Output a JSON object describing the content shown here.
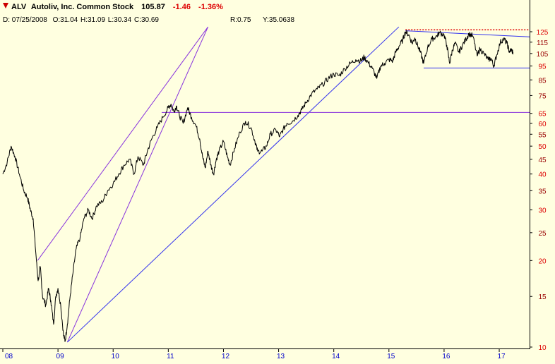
{
  "header": {
    "symbol": "ALV",
    "name": "Autoliv, Inc. Common Stock",
    "last": "105.87",
    "change": "-1.46",
    "change_pct": "-1.36%",
    "date_text": "D: 07/25/2008",
    "open_text": "O:31.04",
    "high_text": "H:31.09",
    "low_text": "L:30.34",
    "close_text": "C:30.69",
    "r_text": "R:0.75",
    "y_text": "Y:35.0638"
  },
  "colors": {
    "background": "#ffffe0",
    "price": "#000000",
    "trendline_blue": "#3333ee",
    "trendline_purple": "#8833dd",
    "resistance_red": "#ff0000",
    "axis_label_blue": "#0000cc",
    "axis_label_dark_red": "#990000",
    "axis_label_red": "#dd0000",
    "change_red": "#dd0000"
  },
  "chart_data": {
    "type": "line",
    "title": "ALV Autoliv, Inc. Common Stock",
    "scale": "log",
    "xlabel": "",
    "ylabel": "",
    "xlim": [
      2008.0,
      2017.55
    ],
    "ylim": [
      10,
      140
    ],
    "x_ticks": [
      "08",
      "09",
      "10",
      "11",
      "12",
      "13",
      "14",
      "15",
      "16",
      "17"
    ],
    "y_ticks": [
      {
        "value": 125,
        "label": "125",
        "color": "red"
      },
      {
        "value": 115,
        "label": "115",
        "color": "darkred"
      },
      {
        "value": 105,
        "label": "105",
        "color": "darkred"
      },
      {
        "value": 95,
        "label": "95",
        "color": "red"
      },
      {
        "value": 85,
        "label": "85",
        "color": "darkred"
      },
      {
        "value": 75,
        "label": "75",
        "color": "darkred"
      },
      {
        "value": 65,
        "label": "65",
        "color": "red"
      },
      {
        "value": 60,
        "label": "60",
        "color": "red"
      },
      {
        "value": 55,
        "label": "55",
        "color": "darkred"
      },
      {
        "value": 50,
        "label": "50",
        "color": "red"
      },
      {
        "value": 45,
        "label": "45",
        "color": "darkred"
      },
      {
        "value": 40,
        "label": "40",
        "color": "red"
      },
      {
        "value": 35,
        "label": "35",
        "color": "darkred"
      },
      {
        "value": 30,
        "label": "30",
        "color": "red"
      },
      {
        "value": 25,
        "label": "25",
        "color": "darkred"
      },
      {
        "value": 20,
        "label": "20",
        "color": "red"
      },
      {
        "value": 15,
        "label": "15",
        "color": "darkred"
      },
      {
        "value": 10,
        "label": "10",
        "color": "red"
      }
    ],
    "series": [
      {
        "values": [
          [
            2008.0,
            40
          ],
          [
            2008.08,
            44
          ],
          [
            2008.15,
            50
          ],
          [
            2008.22,
            46
          ],
          [
            2008.3,
            40
          ],
          [
            2008.38,
            35
          ],
          [
            2008.45,
            33
          ],
          [
            2008.5,
            30
          ],
          [
            2008.55,
            28
          ],
          [
            2008.6,
            21
          ],
          [
            2008.64,
            17
          ],
          [
            2008.68,
            19
          ],
          [
            2008.72,
            15
          ],
          [
            2008.78,
            14
          ],
          [
            2008.83,
            16
          ],
          [
            2008.87,
            14.5
          ],
          [
            2008.92,
            12
          ],
          [
            2008.96,
            15
          ],
          [
            2009.0,
            16
          ],
          [
            2009.05,
            14
          ],
          [
            2009.1,
            11
          ],
          [
            2009.13,
            10.5
          ],
          [
            2009.17,
            12
          ],
          [
            2009.22,
            15
          ],
          [
            2009.27,
            18
          ],
          [
            2009.33,
            22
          ],
          [
            2009.4,
            24
          ],
          [
            2009.47,
            28
          ],
          [
            2009.55,
            30
          ],
          [
            2009.62,
            28
          ],
          [
            2009.7,
            31
          ],
          [
            2009.8,
            32
          ],
          [
            2009.9,
            35
          ],
          [
            2010.0,
            37
          ],
          [
            2010.1,
            40
          ],
          [
            2010.2,
            43
          ],
          [
            2010.3,
            45
          ],
          [
            2010.38,
            40
          ],
          [
            2010.45,
            46
          ],
          [
            2010.55,
            43
          ],
          [
            2010.62,
            48
          ],
          [
            2010.7,
            53
          ],
          [
            2010.8,
            58
          ],
          [
            2010.9,
            63
          ],
          [
            2011.0,
            68
          ],
          [
            2011.05,
            70
          ],
          [
            2011.1,
            66
          ],
          [
            2011.15,
            69
          ],
          [
            2011.2,
            64
          ],
          [
            2011.27,
            60
          ],
          [
            2011.35,
            68
          ],
          [
            2011.42,
            63
          ],
          [
            2011.5,
            59
          ],
          [
            2011.57,
            53
          ],
          [
            2011.62,
            46
          ],
          [
            2011.67,
            42
          ],
          [
            2011.72,
            48
          ],
          [
            2011.77,
            43
          ],
          [
            2011.82,
            40
          ],
          [
            2011.87,
            45
          ],
          [
            2011.92,
            48
          ],
          [
            2012.0,
            52
          ],
          [
            2012.07,
            46
          ],
          [
            2012.12,
            43
          ],
          [
            2012.2,
            49
          ],
          [
            2012.3,
            56
          ],
          [
            2012.4,
            61
          ],
          [
            2012.5,
            58
          ],
          [
            2012.57,
            52
          ],
          [
            2012.62,
            48
          ],
          [
            2012.7,
            48
          ],
          [
            2012.78,
            50
          ],
          [
            2012.85,
            55
          ],
          [
            2012.95,
            57
          ],
          [
            2013.02,
            54
          ],
          [
            2013.08,
            57
          ],
          [
            2013.15,
            60
          ],
          [
            2013.25,
            61
          ],
          [
            2013.35,
            64
          ],
          [
            2013.42,
            67
          ],
          [
            2013.5,
            71
          ],
          [
            2013.6,
            76
          ],
          [
            2013.7,
            79
          ],
          [
            2013.8,
            82
          ],
          [
            2013.9,
            86
          ],
          [
            2014.0,
            89
          ],
          [
            2014.1,
            88
          ],
          [
            2014.2,
            93
          ],
          [
            2014.3,
            97
          ],
          [
            2014.4,
            100
          ],
          [
            2014.5,
            99
          ],
          [
            2014.55,
            102
          ],
          [
            2014.62,
            98
          ],
          [
            2014.7,
            93
          ],
          [
            2014.78,
            86
          ],
          [
            2014.85,
            95
          ],
          [
            2014.92,
            97
          ],
          [
            2015.0,
            100
          ],
          [
            2015.07,
            99
          ],
          [
            2015.12,
            106
          ],
          [
            2015.18,
            111
          ],
          [
            2015.25,
            117
          ],
          [
            2015.3,
            125
          ],
          [
            2015.36,
            122
          ],
          [
            2015.42,
            114
          ],
          [
            2015.47,
            119
          ],
          [
            2015.52,
            112
          ],
          [
            2015.57,
            106
          ],
          [
            2015.63,
            97
          ],
          [
            2015.7,
            110
          ],
          [
            2015.78,
            118
          ],
          [
            2015.85,
            120
          ],
          [
            2015.92,
            124
          ],
          [
            2016.0,
            122
          ],
          [
            2016.05,
            112
          ],
          [
            2016.1,
            97
          ],
          [
            2016.15,
            108
          ],
          [
            2016.2,
            114
          ],
          [
            2016.27,
            106
          ],
          [
            2016.33,
            112
          ],
          [
            2016.4,
            118
          ],
          [
            2016.45,
            123
          ],
          [
            2016.52,
            121
          ],
          [
            2016.6,
            103
          ],
          [
            2016.65,
            109
          ],
          [
            2016.72,
            105
          ],
          [
            2016.8,
            100
          ],
          [
            2016.85,
            101
          ],
          [
            2016.9,
            95
          ],
          [
            2016.95,
            103
          ],
          [
            2017.02,
            115
          ],
          [
            2017.08,
            118
          ],
          [
            2017.14,
            114
          ],
          [
            2017.18,
            107
          ],
          [
            2017.22,
            108
          ],
          [
            2017.25,
            106
          ]
        ]
      }
    ],
    "trendlines": [
      {
        "color": "purple",
        "points": [
          [
            2008.63,
            20
          ],
          [
            2011.72,
            130
          ]
        ]
      },
      {
        "color": "purple",
        "points": [
          [
            2009.17,
            10.4
          ],
          [
            2011.72,
            130
          ]
        ]
      },
      {
        "color": "blue",
        "points": [
          [
            2009.17,
            10.4
          ],
          [
            2015.18,
            130
          ]
        ]
      },
      {
        "color": "purple",
        "points": [
          [
            2010.88,
            65.5
          ],
          [
            2017.55,
            65.5
          ]
        ]
      },
      {
        "color": "blue",
        "points": [
          [
            2015.63,
            93.5
          ],
          [
            2017.55,
            93.5
          ]
        ]
      },
      {
        "color": "blue",
        "points": [
          [
            2015.3,
            126
          ],
          [
            2017.55,
            120
          ]
        ]
      },
      {
        "color": "red",
        "style": "dotted",
        "points": [
          [
            2015.3,
            127
          ],
          [
            2017.55,
            127
          ]
        ]
      }
    ]
  }
}
